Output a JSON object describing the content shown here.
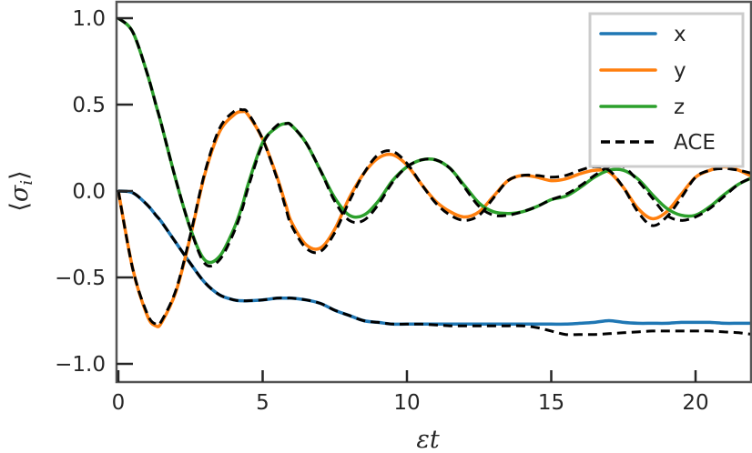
{
  "chart_data": {
    "type": "line",
    "title": "",
    "xlabel": "εt",
    "ylabel": "⟨σ_i⟩",
    "xlim": [
      0,
      22
    ],
    "ylim": [
      -1.1,
      1.1
    ],
    "xticks": [
      0,
      5,
      10,
      15,
      20
    ],
    "xtick_labels": [
      "0",
      "5",
      "10",
      "15",
      "20"
    ],
    "yticks": [
      1.0,
      0.5,
      0.0,
      -0.5,
      -1.0
    ],
    "ytick_labels": [
      "1.0",
      "0.5",
      "0.0",
      "−0.5",
      "−1.0"
    ],
    "grid": false,
    "legend_position": "upper right",
    "x": [
      0,
      0.5,
      1,
      1.3,
      1.5,
      2,
      2.5,
      3,
      3.5,
      4,
      4.3,
      4.5,
      5,
      5.5,
      5.8,
      6,
      6.5,
      7,
      7.5,
      8,
      8.5,
      9,
      9.5,
      10,
      10.5,
      11,
      11.5,
      12,
      12.5,
      13,
      13.5,
      14,
      14.5,
      15,
      15.5,
      16,
      16.5,
      17,
      17.5,
      18,
      18.5,
      19,
      19.5,
      20,
      20.5,
      21,
      21.5,
      22
    ],
    "series": [
      {
        "name": "x",
        "color": "#1f77b4",
        "style": "solid",
        "values": [
          0.0,
          -0.01,
          -0.08,
          -0.14,
          -0.18,
          -0.3,
          -0.42,
          -0.53,
          -0.6,
          -0.63,
          -0.635,
          -0.635,
          -0.63,
          -0.62,
          -0.62,
          -0.62,
          -0.63,
          -0.65,
          -0.69,
          -0.72,
          -0.75,
          -0.76,
          -0.77,
          -0.77,
          -0.77,
          -0.77,
          -0.77,
          -0.77,
          -0.77,
          -0.77,
          -0.77,
          -0.77,
          -0.77,
          -0.77,
          -0.77,
          -0.765,
          -0.76,
          -0.75,
          -0.76,
          -0.765,
          -0.765,
          -0.765,
          -0.76,
          -0.76,
          -0.76,
          -0.765,
          -0.765,
          -0.765
        ]
      },
      {
        "name": "y",
        "color": "#ff7f0e",
        "style": "solid",
        "values": [
          0.0,
          -0.45,
          -0.72,
          -0.78,
          -0.76,
          -0.58,
          -0.26,
          0.1,
          0.34,
          0.44,
          0.46,
          0.44,
          0.3,
          0.08,
          -0.08,
          -0.18,
          -0.31,
          -0.33,
          -0.22,
          -0.04,
          0.1,
          0.19,
          0.21,
          0.15,
          0.04,
          -0.06,
          -0.12,
          -0.15,
          -0.12,
          -0.03,
          0.06,
          0.09,
          0.08,
          0.06,
          0.07,
          0.1,
          0.12,
          0.11,
          0.02,
          -0.1,
          -0.16,
          -0.12,
          -0.02,
          0.08,
          0.12,
          0.14,
          0.12,
          0.08
        ]
      },
      {
        "name": "z",
        "color": "#2ca02c",
        "style": "solid",
        "values": [
          1.0,
          0.92,
          0.68,
          0.5,
          0.38,
          0.06,
          -0.22,
          -0.4,
          -0.38,
          -0.22,
          -0.08,
          0.04,
          0.28,
          0.37,
          0.39,
          0.38,
          0.28,
          0.12,
          -0.04,
          -0.14,
          -0.14,
          -0.06,
          0.06,
          0.14,
          0.18,
          0.18,
          0.13,
          0.03,
          -0.07,
          -0.12,
          -0.13,
          -0.12,
          -0.09,
          -0.05,
          -0.03,
          0.02,
          0.08,
          0.12,
          0.12,
          0.07,
          -0.02,
          -0.1,
          -0.14,
          -0.14,
          -0.09,
          -0.02,
          0.04,
          0.08
        ]
      },
      {
        "name": "ACE",
        "color": "#000000",
        "style": "dashed",
        "description": "ACE approximation overlaid on x, y, z (closely tracks each, deviating slightly after εt≈8; ACE x drifts to ≈ -0.83 at late times)",
        "values_x": [
          0.0,
          -0.01,
          -0.08,
          -0.14,
          -0.18,
          -0.3,
          -0.42,
          -0.53,
          -0.6,
          -0.63,
          -0.635,
          -0.635,
          -0.63,
          -0.62,
          -0.62,
          -0.62,
          -0.63,
          -0.65,
          -0.69,
          -0.72,
          -0.75,
          -0.76,
          -0.77,
          -0.77,
          -0.77,
          -0.775,
          -0.78,
          -0.78,
          -0.78,
          -0.78,
          -0.78,
          -0.78,
          -0.79,
          -0.81,
          -0.83,
          -0.83,
          -0.83,
          -0.825,
          -0.82,
          -0.815,
          -0.81,
          -0.81,
          -0.81,
          -0.81,
          -0.81,
          -0.815,
          -0.82,
          -0.83
        ],
        "values_y": [
          0.0,
          -0.45,
          -0.71,
          -0.77,
          -0.75,
          -0.57,
          -0.25,
          0.11,
          0.36,
          0.46,
          0.47,
          0.45,
          0.3,
          0.07,
          -0.1,
          -0.2,
          -0.33,
          -0.35,
          -0.24,
          -0.06,
          0.1,
          0.21,
          0.23,
          0.16,
          0.04,
          -0.07,
          -0.14,
          -0.17,
          -0.14,
          -0.04,
          0.06,
          0.09,
          0.09,
          0.08,
          0.09,
          0.12,
          0.14,
          0.12,
          0.02,
          -0.12,
          -0.2,
          -0.15,
          -0.04,
          0.08,
          0.12,
          0.13,
          0.12,
          0.1
        ],
        "values_z": [
          1.0,
          0.92,
          0.68,
          0.5,
          0.38,
          0.06,
          -0.22,
          -0.42,
          -0.4,
          -0.24,
          -0.1,
          0.02,
          0.27,
          0.38,
          0.39,
          0.38,
          0.28,
          0.12,
          -0.06,
          -0.17,
          -0.17,
          -0.08,
          0.05,
          0.14,
          0.18,
          0.18,
          0.13,
          0.02,
          -0.09,
          -0.14,
          -0.14,
          -0.12,
          -0.09,
          -0.05,
          -0.02,
          0.03,
          0.09,
          0.14,
          0.14,
          0.06,
          -0.04,
          -0.14,
          -0.17,
          -0.15,
          -0.1,
          -0.03,
          0.04,
          0.08
        ]
      }
    ]
  },
  "legend": {
    "items": [
      {
        "label": "x",
        "color": "#1f77b4",
        "style": "solid"
      },
      {
        "label": "y",
        "color": "#ff7f0e",
        "style": "solid"
      },
      {
        "label": "z",
        "color": "#2ca02c",
        "style": "solid"
      },
      {
        "label": "ACE",
        "color": "#000000",
        "style": "dashed"
      }
    ]
  },
  "axes": {
    "xlabel": "εt",
    "ylabel_main": "σ",
    "ylabel_sub": "i",
    "ylabel_left": "⟨",
    "ylabel_right": "⟩"
  }
}
